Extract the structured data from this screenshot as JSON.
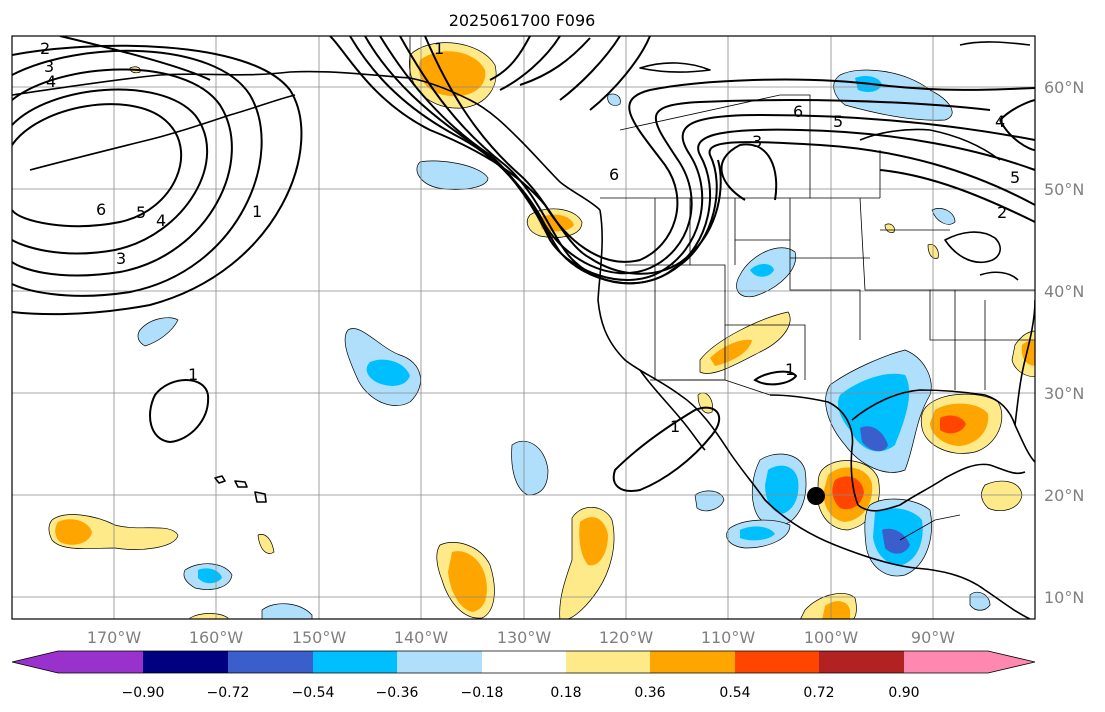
{
  "title": "2025061700 F096",
  "lon_ticks": [
    "170°W",
    "160°W",
    "150°W",
    "140°W",
    "130°W",
    "120°W",
    "110°W",
    "100°W",
    "90°W"
  ],
  "lat_ticks": [
    "60°N",
    "50°N",
    "40°N",
    "30°N",
    "20°N",
    "10°N"
  ],
  "colorbar": {
    "ticks": [
      "−0.90",
      "−0.72",
      "−0.54",
      "−0.36",
      "−0.18",
      "0.18",
      "0.36",
      "0.54",
      "0.72",
      "0.90"
    ],
    "colors": [
      "#9932cc",
      "#000080",
      "#3a5fcd",
      "#00bfff",
      "#afdffb",
      "#ffffff",
      "#ffea8a",
      "#ffa500",
      "#ff4500",
      "#b22222",
      "#ff88b0"
    ]
  },
  "contour_labels": {
    "nw_2": "2",
    "nw_3": "3",
    "nw_4": "4",
    "w_6": "6",
    "w_5": "5",
    "w_4": "4",
    "w_3": "3",
    "w_1": "1",
    "alaska_1": "1",
    "canada_6a": "6",
    "canada_5": "5",
    "canada_3": "3",
    "canada_6b": "6",
    "pac_1": "1",
    "baja_1": "1",
    "tex_1": "1",
    "east_4": "4",
    "east_5": "5",
    "east_2": "2"
  },
  "marker": {
    "label": "storm-center",
    "color": "#000000"
  }
}
